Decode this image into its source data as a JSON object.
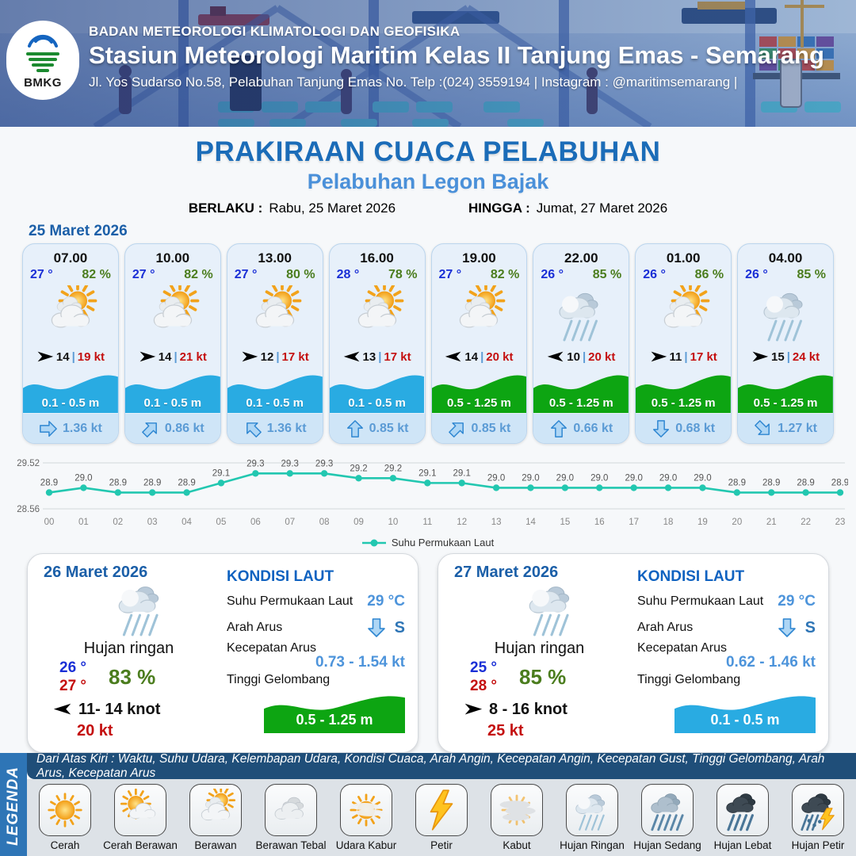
{
  "header": {
    "logo_text": "BMKG",
    "agency": "BADAN METEOROLOGI KLIMATOLOGI DAN GEOFISIKA",
    "station": "Stasiun Meteorologi Maritim Kelas II Tanjung Emas - Semarang",
    "address": "Jl. Yos Sudarso No.58, Pelabuhan Tanjung Emas No. Telp :(024) 3559194 | Instagram : @maritimsemarang |"
  },
  "title": {
    "main": "PRAKIRAAN CUACA PELABUHAN",
    "port": "Pelabuhan Legon Bajak",
    "berlaku_label": "BERLAKU :",
    "berlaku_value": "Rabu, 25 Maret 2026",
    "hingga_label": "HINGGA :",
    "hingga_value": "Jumat, 27 Maret 2026"
  },
  "forecast_date": "25 Maret 2026",
  "forecast_cards": [
    {
      "time": "07.00",
      "temp": "27 °",
      "humidity": "82 %",
      "icon": "berawan",
      "wind_dir": "right",
      "wind": "14",
      "gust": "19 kt",
      "wave": "0.1 - 0.5 m",
      "wave_color": "blue",
      "current_dir": "E",
      "current": "1.36 kt"
    },
    {
      "time": "10.00",
      "temp": "27 °",
      "humidity": "82 %",
      "icon": "berawan",
      "wind_dir": "right",
      "wind": "14",
      "gust": "21 kt",
      "wave": "0.1 - 0.5 m",
      "wave_color": "blue",
      "current_dir": "NE",
      "current": "0.86 kt"
    },
    {
      "time": "13.00",
      "temp": "27 °",
      "humidity": "80 %",
      "icon": "berawan",
      "wind_dir": "right",
      "wind": "12",
      "gust": "17 kt",
      "wave": "0.1 - 0.5 m",
      "wave_color": "blue",
      "current_dir": "NW",
      "current": "1.36 kt"
    },
    {
      "time": "16.00",
      "temp": "28 °",
      "humidity": "78 %",
      "icon": "berawan",
      "wind_dir": "left",
      "wind": "13",
      "gust": "17 kt",
      "wave": "0.1 - 0.5 m",
      "wave_color": "blue",
      "current_dir": "N",
      "current": "0.85 kt"
    },
    {
      "time": "19.00",
      "temp": "27 °",
      "humidity": "82 %",
      "icon": "berawan",
      "wind_dir": "left",
      "wind": "14",
      "gust": "20 kt",
      "wave": "0.5 - 1.25 m",
      "wave_color": "green",
      "current_dir": "NE",
      "current": "0.85 kt"
    },
    {
      "time": "22.00",
      "temp": "26 °",
      "humidity": "85 %",
      "icon": "hujan-ringan",
      "wind_dir": "left",
      "wind": "10",
      "gust": "20 kt",
      "wave": "0.5 - 1.25 m",
      "wave_color": "green",
      "current_dir": "N",
      "current": "0.66 kt"
    },
    {
      "time": "01.00",
      "temp": "26 °",
      "humidity": "86 %",
      "icon": "berawan",
      "wind_dir": "right",
      "wind": "11",
      "gust": "17 kt",
      "wave": "0.5 - 1.25 m",
      "wave_color": "green",
      "current_dir": "S",
      "current": "0.68 kt"
    },
    {
      "time": "04.00",
      "temp": "26 °",
      "humidity": "85 %",
      "icon": "hujan-ringan",
      "wind_dir": "right",
      "wind": "15",
      "gust": "24 kt",
      "wave": "0.5 - 1.25 m",
      "wave_color": "green",
      "current_dir": "SE",
      "current": "1.27 kt"
    }
  ],
  "chart_data": {
    "type": "line",
    "x": [
      "00",
      "01",
      "02",
      "03",
      "04",
      "05",
      "06",
      "07",
      "08",
      "09",
      "10",
      "11",
      "12",
      "13",
      "14",
      "15",
      "16",
      "17",
      "18",
      "19",
      "20",
      "21",
      "22",
      "23"
    ],
    "series": [
      {
        "name": "Suhu Permukaan Laut",
        "values": [
          28.9,
          29.0,
          28.9,
          28.9,
          28.9,
          29.1,
          29.3,
          29.3,
          29.3,
          29.2,
          29.2,
          29.1,
          29.1,
          29.0,
          29.0,
          29.0,
          29.0,
          29.0,
          29.0,
          29.0,
          28.9,
          28.9,
          28.9,
          28.9
        ]
      }
    ],
    "ylim": [
      28.56,
      29.52
    ],
    "yticks": [
      "29.52",
      "28.56"
    ],
    "line_color": "#22c7b0",
    "grid": true,
    "legend_position": "bottom"
  },
  "day_cards": [
    {
      "date": "26 Maret 2026",
      "icon": "hujan-ringan",
      "condition": "Hujan ringan",
      "temp_min": "26 °",
      "temp_max": "27 °",
      "humidity": "83 %",
      "wind_dir": "left",
      "wind_range": "11- 14 knot",
      "gust": "20 kt",
      "sea": {
        "title": "KONDISI LAUT",
        "sst_label": "Suhu Permukaan Laut",
        "sst": "29 °C",
        "dir_label": "Arah Arus",
        "dir": "S",
        "speed_label": "Kecepatan Arus",
        "speed": "0.73 - 1.54 kt",
        "wave_label": "Tinggi Gelombang",
        "wave": "0.5 - 1.25 m",
        "wave_color": "green"
      }
    },
    {
      "date": "27 Maret 2026",
      "icon": "hujan-ringan",
      "condition": "Hujan ringan",
      "temp_min": "25 °",
      "temp_max": "28 °",
      "humidity": "85 %",
      "wind_dir": "right",
      "wind_range": "8  - 16 knot",
      "gust": "25 kt",
      "sea": {
        "title": "KONDISI LAUT",
        "sst_label": "Suhu Permukaan Laut",
        "sst": "29 °C",
        "dir_label": "Arah Arus",
        "dir": "S",
        "speed_label": "Kecepatan Arus",
        "speed": "0.62 - 1.46 kt",
        "wave_label": "Tinggi Gelombang",
        "wave": "0.1 - 0.5 m",
        "wave_color": "blue"
      }
    }
  ],
  "legend": {
    "strip_label": "LEGENDA",
    "bar_text": "Dari Atas Kiri : Waktu, Suhu Udara, Kelembapan Udara, Kondisi Cuaca, Arah Angin, Kecepatan Angin, Kecepatan Gust, Tinggi Gelombang, Arah Arus, Kecepatan Arus",
    "items": [
      {
        "icon": "cerah",
        "label": "Cerah"
      },
      {
        "icon": "cerah-berawan",
        "label": "Cerah Berawan"
      },
      {
        "icon": "berawan",
        "label": "Berawan"
      },
      {
        "icon": "berawan-tebal",
        "label": "Berawan Tebal"
      },
      {
        "icon": "udara-kabur",
        "label": "Udara Kabur"
      },
      {
        "icon": "petir",
        "label": "Petir"
      },
      {
        "icon": "kabut",
        "label": "Kabut"
      },
      {
        "icon": "hujan-ringan",
        "label": "Hujan Ringan"
      },
      {
        "icon": "hujan-sedang",
        "label": "Hujan Sedang"
      },
      {
        "icon": "hujan-lebat",
        "label": "Hujan Lebat"
      },
      {
        "icon": "hujan-petir",
        "label": "Hujan Petir"
      }
    ]
  },
  "colors": {
    "wave_blue": "#29ABE2",
    "wave_green": "#0DA512",
    "temp_blue": "#1a2fd6",
    "humidity_green": "#4b7d1e",
    "gust_red": "#c40f0f",
    "current_blue": "#5b9bd5",
    "title_blue": "#1b6cb8",
    "port_blue": "#4a90d9",
    "chart_line": "#22c7b0"
  }
}
